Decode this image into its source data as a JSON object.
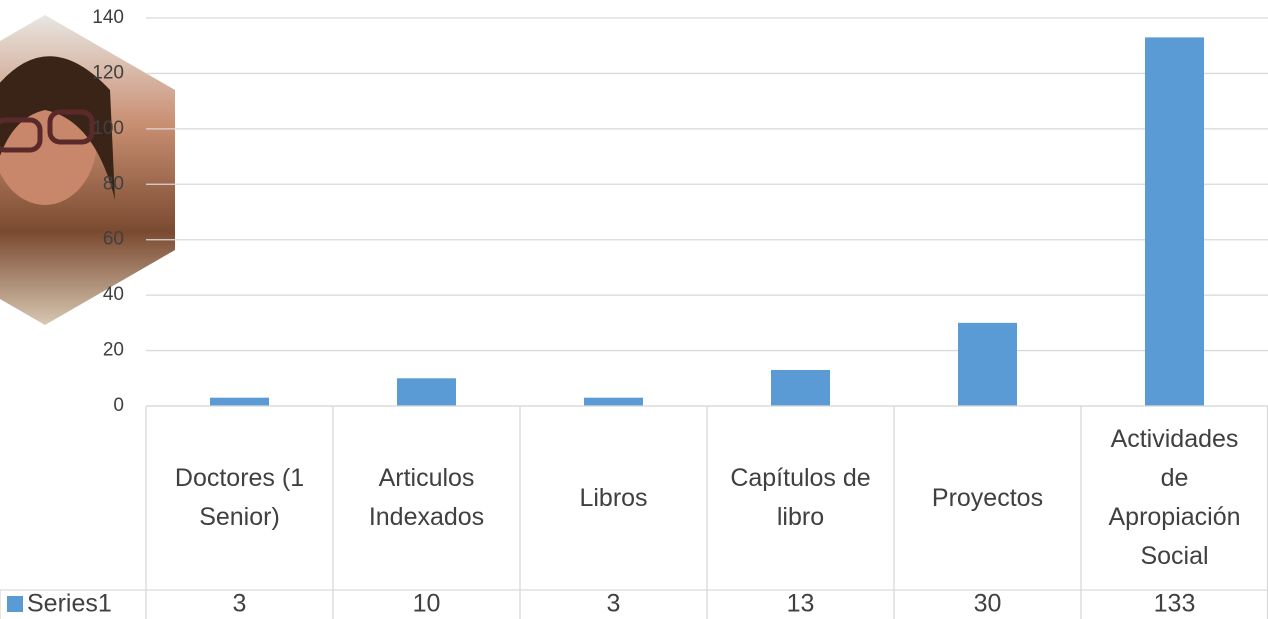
{
  "chart_data": {
    "type": "bar",
    "categories": [
      "Doctores (1 Senior)",
      "Articulos Indexados",
      "Libros",
      "Capítulos de libro",
      "Proyectos",
      "Actividades de Apropiación Social"
    ],
    "series": [
      {
        "name": "Series1",
        "color": "#5b9bd5",
        "values": [
          3,
          10,
          3,
          13,
          30,
          133
        ]
      }
    ],
    "ylim": [
      0,
      140
    ],
    "yticks": [
      0,
      20,
      40,
      60,
      80,
      100,
      120,
      140
    ],
    "grid": true,
    "data_table": true
  }
}
